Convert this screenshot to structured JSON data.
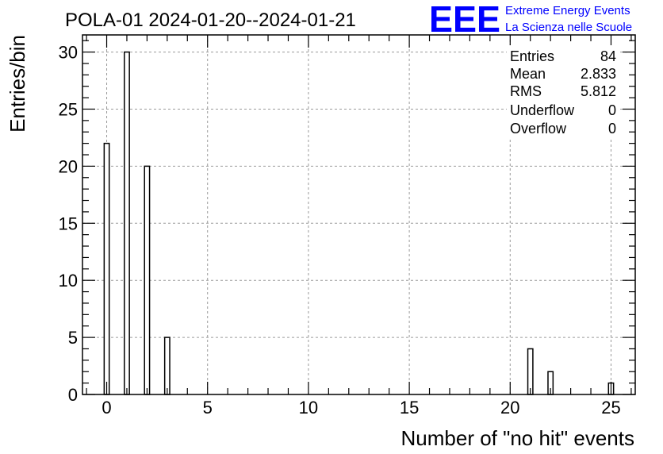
{
  "title": "POLA-01 2024-01-20--2024-01-21",
  "logo": {
    "text": "EEE",
    "line1": "Extreme Energy Events",
    "line2": "La Scienza nelle Scuole",
    "color": "#0000ff"
  },
  "stats": [
    {
      "label": "Entries",
      "value": "84"
    },
    {
      "label": "Mean",
      "value": "2.833"
    },
    {
      "label": "RMS",
      "value": "5.812"
    },
    {
      "label": "Underflow",
      "value": "0"
    },
    {
      "label": "Overflow",
      "value": "0"
    }
  ],
  "chart_data": {
    "type": "bar",
    "title": "POLA-01 2024-01-20--2024-01-21",
    "xlabel": "Number of \"no hit\" events",
    "ylabel": "Entries/bin",
    "xlim": [
      -1.2,
      26.2
    ],
    "ylim": [
      0,
      31.5
    ],
    "grid": true,
    "x_ticks": [
      0,
      5,
      10,
      15,
      20,
      25
    ],
    "y_ticks": [
      0,
      5,
      10,
      15,
      20,
      25,
      30
    ],
    "bin_width": 0.25,
    "x": [
      0,
      1,
      2,
      3,
      21,
      22,
      25
    ],
    "values": [
      22,
      30,
      20,
      5,
      4,
      2,
      1
    ],
    "bar_color": "#000000"
  }
}
